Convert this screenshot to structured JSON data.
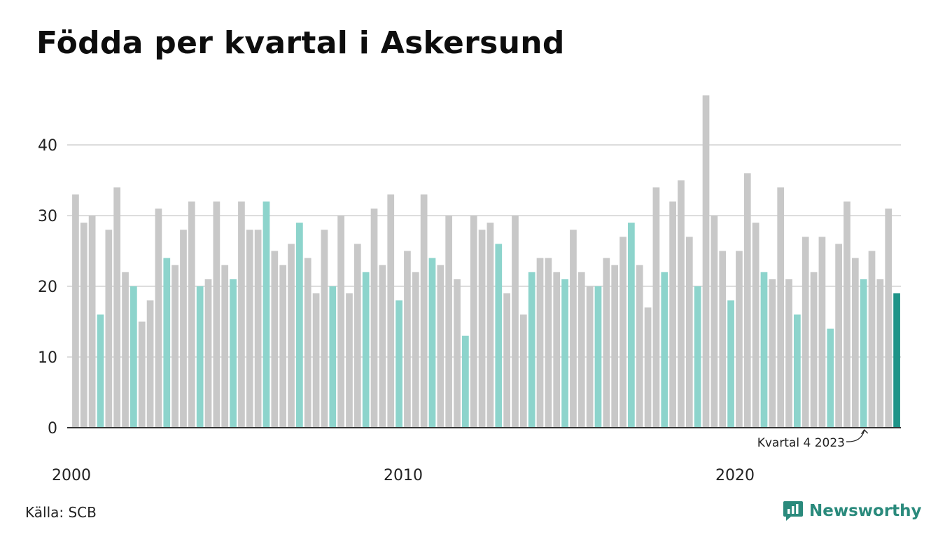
{
  "title": "Födda per kvartal i Askersund",
  "source": "Källa: SCB",
  "brand": "Newsworthy",
  "colors": {
    "bar": "#c8c8c8",
    "highlight_quarter": "#8dd4cc",
    "latest": "#1f9488",
    "grid": "#dddddd",
    "axis": "#333333",
    "brand": "#2a8a7c"
  },
  "chart_data": {
    "type": "bar",
    "title": "Födda per kvartal i Askersund",
    "xlabel": "",
    "ylabel": "",
    "ylim": [
      0,
      48
    ],
    "yticks": [
      0,
      10,
      20,
      30,
      40
    ],
    "grid": true,
    "highlighted_quarter": 4,
    "x_tick_labels": [
      "2000",
      "2010",
      "2020"
    ],
    "first_year": 2000,
    "annotation": "Kvartal 4 2023",
    "values": [
      33,
      29,
      30,
      16,
      28,
      34,
      22,
      20,
      15,
      18,
      31,
      24,
      23,
      28,
      32,
      20,
      21,
      32,
      23,
      21,
      32,
      28,
      28,
      32,
      25,
      23,
      26,
      29,
      24,
      19,
      28,
      20,
      30,
      19,
      26,
      22,
      31,
      23,
      33,
      18,
      25,
      22,
      33,
      24,
      23,
      30,
      21,
      13,
      30,
      28,
      29,
      26,
      19,
      30,
      16,
      22,
      24,
      24,
      22,
      21,
      28,
      22,
      20,
      20,
      24,
      23,
      27,
      29,
      23,
      17,
      34,
      22,
      32,
      35,
      27,
      20,
      47,
      30,
      25,
      18,
      25,
      36,
      29,
      22,
      21,
      34,
      21,
      16,
      27,
      22,
      27,
      14,
      26,
      32,
      24,
      21,
      25,
      21,
      31,
      19
    ]
  }
}
